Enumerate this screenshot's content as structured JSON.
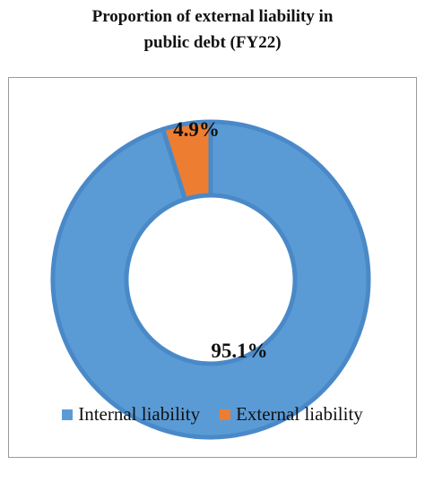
{
  "colors": {
    "internal": "#5b9bd5",
    "internal_border": "#4a89c8",
    "external": "#ed7d31",
    "external_border": "#4a89c8",
    "frame_border": "#9a9a9a"
  },
  "chart_data": {
    "type": "pie",
    "subtype": "donut",
    "title_lines": [
      "Proportion of external liability in",
      "public debt (FY22)"
    ],
    "slices": [
      {
        "name": "Internal liability",
        "value": 95.1,
        "label": "95.1%",
        "color": "#5b9bd5"
      },
      {
        "name": "External liability",
        "value": 4.9,
        "label": "4.9%",
        "color": "#ed7d31"
      }
    ],
    "legend_position": "bottom",
    "unit": "%"
  }
}
